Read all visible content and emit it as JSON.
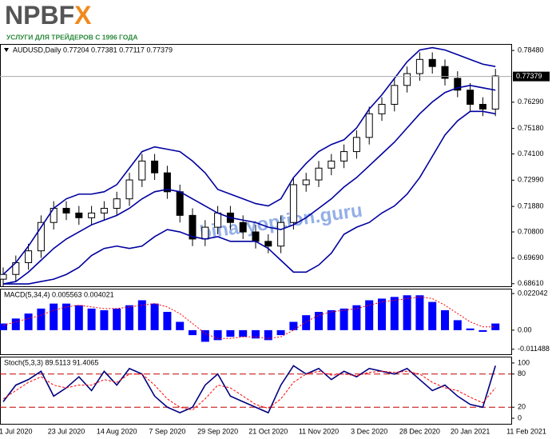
{
  "logo": {
    "main": "NPBF",
    "accent": "X",
    "tagline": "УСЛУГИ ДЛЯ ТРЕЙДЕРОВ С 1996 ГОДА"
  },
  "watermark": "binaryoption.guru",
  "chart_data": [
    {
      "type": "candlestick",
      "title": "AUDUSD,Daily  0.77204 0.77381 0.77117 0.77379",
      "categories": [
        null,
        "1 Jul 2020",
        null,
        null,
        null,
        "23 Jul 2020",
        null,
        null,
        null,
        "14 Aug 2020",
        null,
        null,
        null,
        "7 Sep 2020",
        null,
        null,
        null,
        "29 Sep 2020",
        null,
        null,
        null,
        "21 Oct 2020",
        null,
        null,
        null,
        "11 Nov 2020",
        null,
        null,
        null,
        "3 Dec 2020",
        null,
        null,
        null,
        "28 Dec 2020",
        null,
        null,
        null,
        "20 Jan 2021",
        null,
        null
      ],
      "x_end_label": "11 Feb 2021",
      "open": [
        0.688,
        0.69,
        0.695,
        0.7,
        0.712,
        0.718,
        0.716,
        0.714,
        0.716,
        0.718,
        0.722,
        0.73,
        0.738,
        0.733,
        0.725,
        0.715,
        0.705,
        0.71,
        0.716,
        0.712,
        0.708,
        0.704,
        0.702,
        0.712,
        0.728,
        0.73,
        0.735,
        0.738,
        0.742,
        0.748,
        0.758,
        0.762,
        0.77,
        0.775,
        0.781,
        0.778,
        0.773,
        0.768,
        0.762,
        0.76
      ],
      "high": [
        0.693,
        0.698,
        0.703,
        0.715,
        0.721,
        0.721,
        0.719,
        0.719,
        0.721,
        0.725,
        0.733,
        0.741,
        0.741,
        0.736,
        0.728,
        0.718,
        0.713,
        0.719,
        0.719,
        0.715,
        0.711,
        0.707,
        0.715,
        0.731,
        0.733,
        0.738,
        0.741,
        0.745,
        0.751,
        0.761,
        0.765,
        0.773,
        0.778,
        0.784,
        0.784,
        0.781,
        0.776,
        0.771,
        0.765,
        0.777
      ],
      "low": [
        0.685,
        0.687,
        0.692,
        0.697,
        0.709,
        0.713,
        0.711,
        0.711,
        0.713,
        0.715,
        0.719,
        0.727,
        0.73,
        0.722,
        0.712,
        0.702,
        0.702,
        0.707,
        0.709,
        0.705,
        0.701,
        0.699,
        0.699,
        0.709,
        0.725,
        0.727,
        0.732,
        0.735,
        0.739,
        0.745,
        0.755,
        0.759,
        0.767,
        0.772,
        0.775,
        0.77,
        0.765,
        0.759,
        0.757,
        0.757
      ],
      "close": [
        0.69,
        0.695,
        0.7,
        0.712,
        0.718,
        0.716,
        0.714,
        0.716,
        0.718,
        0.722,
        0.73,
        0.738,
        0.733,
        0.725,
        0.715,
        0.705,
        0.71,
        0.716,
        0.712,
        0.708,
        0.704,
        0.702,
        0.712,
        0.728,
        0.73,
        0.735,
        0.738,
        0.742,
        0.748,
        0.758,
        0.762,
        0.77,
        0.775,
        0.781,
        0.778,
        0.773,
        0.768,
        0.762,
        0.76,
        0.774
      ],
      "series": [
        {
          "name": "Upper band",
          "color": "#0000a0",
          "values": [
            0.69,
            0.695,
            0.702,
            0.71,
            0.718,
            0.722,
            0.724,
            0.724,
            0.725,
            0.728,
            0.735,
            0.742,
            0.744,
            0.743,
            0.742,
            0.738,
            0.733,
            0.726,
            0.724,
            0.722,
            0.72,
            0.719,
            0.722,
            0.731,
            0.737,
            0.742,
            0.745,
            0.747,
            0.752,
            0.76,
            0.766,
            0.773,
            0.78,
            0.785,
            0.786,
            0.785,
            0.783,
            0.781,
            0.779,
            0.778
          ]
        },
        {
          "name": "Middle band",
          "color": "#0000a0",
          "values": [
            0.686,
            0.687,
            0.691,
            0.696,
            0.701,
            0.705,
            0.708,
            0.711,
            0.713,
            0.715,
            0.718,
            0.722,
            0.725,
            0.726,
            0.725,
            0.722,
            0.719,
            0.716,
            0.714,
            0.713,
            0.712,
            0.71,
            0.709,
            0.711,
            0.714,
            0.718,
            0.722,
            0.727,
            0.731,
            0.736,
            0.741,
            0.746,
            0.752,
            0.758,
            0.763,
            0.767,
            0.769,
            0.77,
            0.769,
            0.768
          ]
        },
        {
          "name": "Lower band",
          "color": "#0000a0",
          "values": [
            0.686,
            0.686,
            0.686,
            0.687,
            0.688,
            0.69,
            0.693,
            0.698,
            0.701,
            0.702,
            0.701,
            0.702,
            0.706,
            0.709,
            0.708,
            0.706,
            0.705,
            0.706,
            0.704,
            0.704,
            0.704,
            0.701,
            0.696,
            0.691,
            0.691,
            0.694,
            0.699,
            0.707,
            0.71,
            0.712,
            0.716,
            0.719,
            0.724,
            0.731,
            0.74,
            0.749,
            0.755,
            0.759,
            0.759,
            0.758
          ]
        }
      ],
      "last_price": {
        "value": 0.77379,
        "label": "0.77379"
      },
      "ylim": [
        0.685,
        0.7872
      ],
      "yticks": [
        {
          "value": 0.7848,
          "label": "0.78480"
        },
        {
          "value": 0.7629,
          "label": "0.76290"
        },
        {
          "value": 0.7518,
          "label": "0.75180"
        },
        {
          "value": 0.741,
          "label": "0.74100"
        },
        {
          "value": 0.7299,
          "label": "0.72990"
        },
        {
          "value": 0.7188,
          "label": "0.71880"
        },
        {
          "value": 0.708,
          "label": "0.70800"
        },
        {
          "value": 0.6969,
          "label": "0.69690"
        },
        {
          "value": 0.6861,
          "label": "0.68610"
        }
      ]
    },
    {
      "type": "macd",
      "title": "MACD(5,34,4) 0.005563 0.004021",
      "series": [
        {
          "name": "MACD",
          "color": "#0000ff",
          "values": [
            0.004,
            0.007,
            0.01,
            0.013,
            0.016,
            0.016,
            0.015,
            0.013,
            0.012,
            0.013,
            0.015,
            0.018,
            0.016,
            0.011,
            0.005,
            -0.003,
            -0.007,
            -0.006,
            -0.004,
            -0.004,
            -0.005,
            -0.006,
            -0.003,
            0.005,
            0.009,
            0.011,
            0.012,
            0.013,
            0.015,
            0.018,
            0.019,
            0.02,
            0.021,
            0.021,
            0.017,
            0.012,
            0.006,
            0.001,
            -0.001,
            0.004
          ]
        },
        {
          "name": "Signal",
          "color": "#ff0000",
          "values": [
            0.003,
            0.005,
            0.007,
            0.009,
            0.012,
            0.014,
            0.015,
            0.014,
            0.013,
            0.013,
            0.014,
            0.015,
            0.016,
            0.014,
            0.01,
            0.004,
            -0.002,
            -0.005,
            -0.005,
            -0.004,
            -0.004,
            -0.005,
            -0.004,
            0.0,
            0.005,
            0.009,
            0.011,
            0.012,
            0.013,
            0.015,
            0.017,
            0.018,
            0.019,
            0.02,
            0.019,
            0.015,
            0.01,
            0.005,
            0.002,
            0.002
          ]
        }
      ],
      "ylim": [
        -0.0145,
        0.0245
      ],
      "yticks": [
        {
          "value": 0.022042,
          "label": "0.022042"
        },
        {
          "value": 0,
          "label": "0.00"
        },
        {
          "value": -0.011488,
          "label": "-0.011488"
        }
      ]
    },
    {
      "type": "stochastic",
      "title": "Stoch(5,3,3) 89.5113 91.4065",
      "series": [
        {
          "name": "%K",
          "color": "#000080",
          "values": [
            30,
            60,
            70,
            85,
            40,
            55,
            75,
            50,
            85,
            60,
            90,
            80,
            40,
            20,
            10,
            20,
            60,
            80,
            40,
            30,
            20,
            10,
            60,
            95,
            80,
            90,
            70,
            85,
            75,
            90,
            85,
            80,
            90,
            70,
            50,
            60,
            40,
            25,
            20,
            95
          ]
        },
        {
          "name": "%D",
          "color": "#ff0000",
          "values": [
            35,
            50,
            65,
            75,
            60,
            55,
            60,
            60,
            70,
            65,
            80,
            80,
            60,
            35,
            20,
            15,
            35,
            60,
            55,
            40,
            25,
            18,
            35,
            65,
            80,
            85,
            78,
            80,
            77,
            83,
            85,
            83,
            85,
            80,
            65,
            55,
            50,
            38,
            28,
            55
          ]
        }
      ],
      "levels": [
        80,
        20
      ],
      "ylim": [
        -10,
        110
      ],
      "yticks": [
        100,
        80,
        20,
        0
      ]
    }
  ]
}
